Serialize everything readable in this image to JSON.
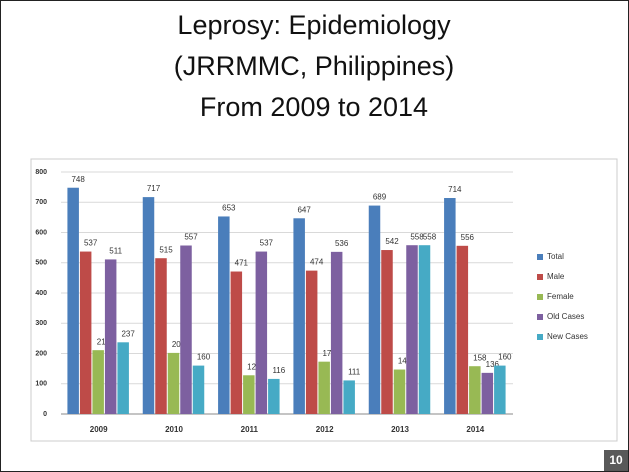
{
  "slide": {
    "title": [
      "Leprosy: Epidemiology",
      "(JRRMMC, Philippines)",
      "From 2009 to 2014"
    ],
    "page_number": "10"
  },
  "chart_data": {
    "type": "bar",
    "categories": [
      "2009",
      "2010",
      "2011",
      "2012",
      "2013",
      "2014"
    ],
    "series": [
      {
        "name": "Total",
        "color": "#4a7ebb",
        "values": [
          748,
          717,
          653,
          647,
          689,
          714
        ]
      },
      {
        "name": "Male",
        "color": "#be4b48",
        "values": [
          537,
          515,
          471,
          474,
          542,
          556
        ]
      },
      {
        "name": "Female",
        "color": "#98b954",
        "values": [
          211,
          202,
          128,
          173,
          147,
          158
        ]
      },
      {
        "name": "Old Cases",
        "color": "#7d60a0",
        "values": [
          511,
          557,
          537,
          536,
          558,
          136
        ]
      },
      {
        "name": "New Cases",
        "color": "#46aac5",
        "values": [
          237,
          160,
          116,
          111,
          558,
          160
        ]
      }
    ],
    "ylim": [
      0,
      800
    ],
    "yticks": [
      0,
      100,
      200,
      300,
      400,
      500,
      600,
      700,
      800
    ],
    "grid": true,
    "legend": "right"
  }
}
